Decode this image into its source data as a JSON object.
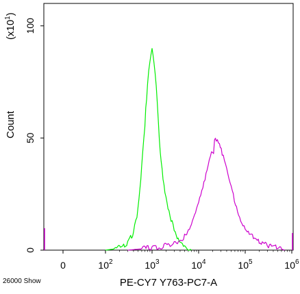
{
  "chart_data": {
    "type": "line",
    "title": "",
    "xlabel": "PE-CY7 Y763-PC7-A",
    "ylabel": "Count",
    "y_multiplier_label": "(x10",
    "y_multiplier_exp": "1",
    "y_multiplier_close": ")",
    "corner_label": "26000 Show",
    "ylim": [
      0,
      110
    ],
    "yticks": [
      {
        "value": 0,
        "label": "0"
      },
      {
        "value": 50,
        "label": "50"
      },
      {
        "value": 100,
        "label": "100"
      }
    ],
    "x_scale": "logicle",
    "xticks": [
      {
        "value": 0,
        "base": "0",
        "exp": ""
      },
      {
        "value": 100,
        "base": "10",
        "exp": "2"
      },
      {
        "value": 1000,
        "base": "10",
        "exp": "3"
      },
      {
        "value": 10000,
        "base": "10",
        "exp": "4"
      },
      {
        "value": 100000,
        "base": "10",
        "exp": "5"
      },
      {
        "value": 1000000,
        "base": "10",
        "exp": "6"
      }
    ],
    "series": [
      {
        "color": "#00ee00",
        "x": [
          100,
          150,
          200,
          300,
          400,
          500,
          600,
          700,
          800,
          900,
          1000,
          1100,
          1300,
          1500,
          1800,
          2200,
          2700,
          3300,
          4000,
          5000,
          6000,
          7000
        ],
        "y": [
          0,
          0.5,
          1,
          3,
          8,
          18,
          38,
          58,
          76,
          88,
          93,
          85,
          62,
          42,
          28,
          18,
          12,
          7,
          4,
          2,
          1,
          0
        ]
      },
      {
        "color": "#cc00cc",
        "x": [
          300,
          1000,
          2000,
          3000,
          5000,
          7000,
          10000,
          13000,
          16000,
          20000,
          24000,
          28000,
          32000,
          40000,
          50000,
          65000,
          80000,
          100000,
          150000,
          200000,
          300000,
          500000,
          700000
        ],
        "y": [
          0,
          1,
          2,
          3,
          6,
          12,
          22,
          31,
          39,
          45,
          48,
          46,
          42,
          35,
          27,
          19,
          14,
          10,
          6,
          4,
          2,
          1,
          0
        ]
      }
    ]
  }
}
